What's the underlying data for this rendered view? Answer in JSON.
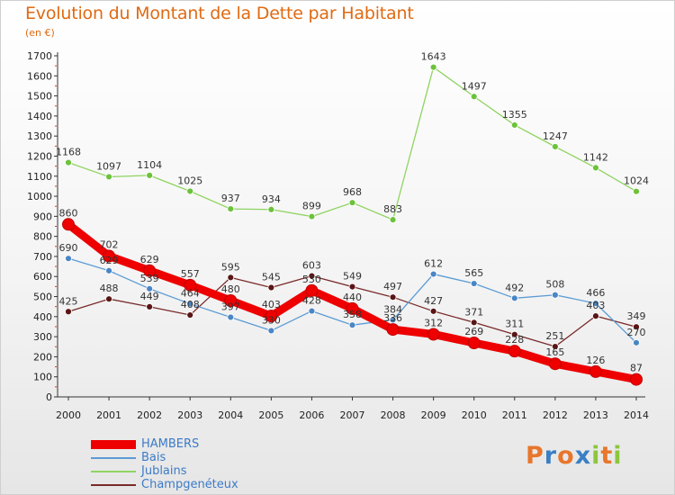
{
  "chart_data": {
    "type": "line",
    "title": "Evolution du Montant de la Dette par Habitant",
    "subtitle": "(en €)",
    "x": [
      "2000",
      "2001",
      "2002",
      "2003",
      "2004",
      "2005",
      "2006",
      "2007",
      "2008",
      "2009",
      "2010",
      "2011",
      "2012",
      "2013",
      "2014"
    ],
    "ylim": [
      0,
      1700
    ],
    "yticks": [
      0,
      100,
      200,
      300,
      400,
      500,
      600,
      700,
      800,
      900,
      1000,
      1100,
      1200,
      1300,
      1400,
      1500,
      1600,
      1700
    ],
    "grid": false,
    "legend_position": "bottom-left",
    "series": [
      {
        "name": "HAMBERS",
        "color": "#ee0000",
        "marker_color": "#ee0000",
        "values": [
          860,
          702,
          629,
          557,
          480,
          403,
          530,
          440,
          336,
          312,
          269,
          228,
          165,
          126,
          87
        ],
        "labels": [
          "860",
          "702",
          "629",
          "557",
          "480",
          "403",
          "530",
          "440",
          "336",
          "312",
          "269",
          "228",
          "165",
          "126",
          "87"
        ]
      },
      {
        "name": "Bais",
        "color": "#5b9bd5",
        "marker_color": "#4a86c5",
        "values": [
          690,
          629,
          539,
          464,
          397,
          330,
          428,
          358,
          384,
          612,
          565,
          492,
          508,
          466,
          270
        ],
        "labels": [
          "690",
          "629",
          "539",
          "464",
          "397",
          "330",
          "428",
          "358",
          "384",
          "612",
          "565",
          "492",
          "508",
          "466",
          "270"
        ]
      },
      {
        "name": "Jublains",
        "color": "#8fd460",
        "marker_color": "#6cc23b",
        "values": [
          1168,
          1097,
          1104,
          1025,
          937,
          934,
          899,
          968,
          883,
          1643,
          1497,
          1355,
          1247,
          1142,
          1024
        ],
        "labels": [
          "1168",
          "1097",
          "1104",
          "1025",
          "937",
          "934",
          "899",
          "968",
          "883",
          "1643",
          "1497",
          "1355",
          "1247",
          "1142",
          "1024"
        ]
      },
      {
        "name": "Champgenéteux",
        "color": "#7a2a2a",
        "marker_color": "#5a1515",
        "values": [
          425,
          488,
          449,
          408,
          595,
          545,
          603,
          549,
          497,
          427,
          371,
          311,
          251,
          403,
          349
        ],
        "labels": [
          "425",
          "488",
          "449",
          "408",
          "595",
          "545",
          "603",
          "549",
          "497",
          "427",
          "371",
          "311",
          "251",
          "403",
          "349"
        ]
      }
    ]
  },
  "logo": {
    "letters": [
      "P",
      "r",
      "o",
      "x",
      "i",
      "t",
      "i"
    ],
    "colors": [
      "#e8762b",
      "#3a7fc4",
      "#e8762b",
      "#3a7fc4",
      "#8cc63f",
      "#e8762b",
      "#8cc63f"
    ]
  }
}
